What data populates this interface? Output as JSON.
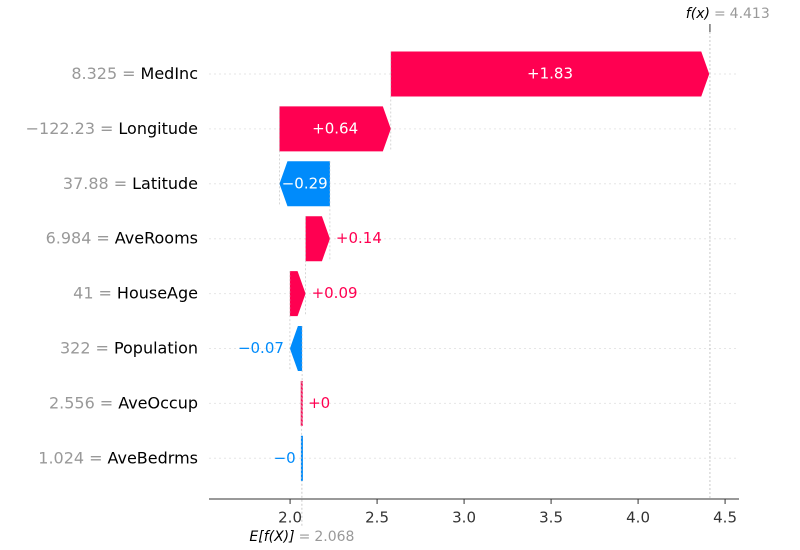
{
  "chart_data": {
    "type": "waterfall",
    "features": [
      "MedInc",
      "Longitude",
      "Latitude",
      "AveRooms",
      "HouseAge",
      "Population",
      "AveOccup",
      "AveBedrms"
    ],
    "feature_values": [
      "8.325",
      "−122.23",
      "37.88",
      "6.984",
      "41",
      "322",
      "2.556",
      "1.024"
    ],
    "separator": "=",
    "values": [
      1.83,
      0.64,
      -0.29,
      0.14,
      0.09,
      -0.07,
      0.002,
      -0.001
    ],
    "value_labels": [
      "+1.83",
      "+0.64",
      "−0.29",
      "+0.14",
      "+0.09",
      "−0.07",
      "+0",
      "−0"
    ],
    "positive_color": "#ff0051",
    "negative_color": "#008bfb",
    "base_label": "E[f(X)]",
    "base_value": 2.068,
    "output_label": "f(x)",
    "output_value": 4.413,
    "xlim": [
      1.534,
      4.58
    ],
    "xticks": [
      {
        "value": 2,
        "label": "2.0"
      },
      2.5,
      {
        "value": 3,
        "label": "3.0"
      },
      3.5,
      {
        "value": 4,
        "label": "4.0"
      },
      4.5
    ]
  }
}
